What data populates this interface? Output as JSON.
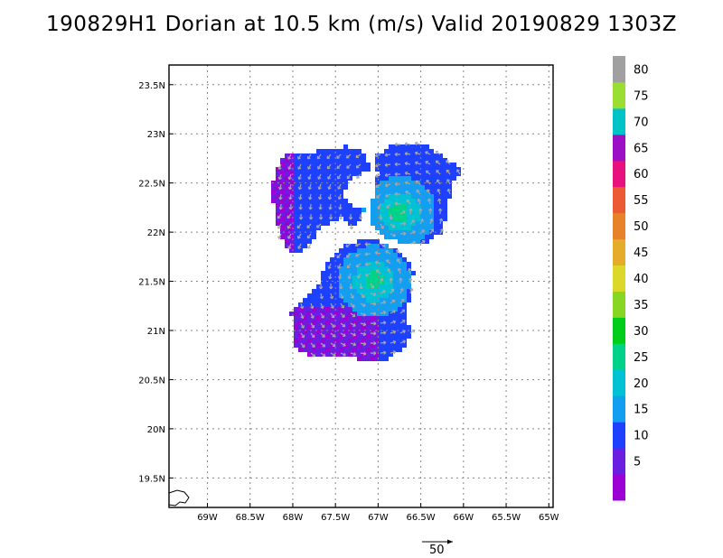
{
  "title": "190829H1 Dorian at 10.5 km (m/s) Valid 20190829 1303Z",
  "map": {
    "lon_range": [
      -69.45,
      -64.95
    ],
    "lat_range": [
      19.2,
      23.7
    ],
    "lon_ticks": [
      {
        "value": -69.0,
        "label": "69W"
      },
      {
        "value": -68.5,
        "label": "68.5W"
      },
      {
        "value": -68.0,
        "label": "68W"
      },
      {
        "value": -67.5,
        "label": "67.5W"
      },
      {
        "value": -67.0,
        "label": "67W"
      },
      {
        "value": -66.5,
        "label": "66.5W"
      },
      {
        "value": -66.0,
        "label": "66W"
      },
      {
        "value": -65.5,
        "label": "65.5W"
      },
      {
        "value": -65.0,
        "label": "65W"
      }
    ],
    "lat_ticks": [
      {
        "value": 19.5,
        "label": "19.5N"
      },
      {
        "value": 20.0,
        "label": "20N"
      },
      {
        "value": 20.5,
        "label": "20.5N"
      },
      {
        "value": 21.0,
        "label": "21N"
      },
      {
        "value": 21.5,
        "label": "21.5N"
      },
      {
        "value": 22.0,
        "label": "22N"
      },
      {
        "value": 22.5,
        "label": "22.5N"
      },
      {
        "value": 23.0,
        "label": "23N"
      },
      {
        "value": 23.5,
        "label": "23.5N"
      }
    ],
    "grid": true,
    "vortex_centers": [
      {
        "name": "upper",
        "lon": -66.75,
        "lat": 22.2
      },
      {
        "name": "lower",
        "lon": -67.05,
        "lat": 21.5
      }
    ]
  },
  "colorbar": {
    "colors": [
      "#9b00d4",
      "#6a1fe0",
      "#1e40ff",
      "#139ef0",
      "#00c2d2",
      "#00d28a",
      "#00cd19",
      "#86d623",
      "#dcd82a",
      "#e5ab2a",
      "#e8822a",
      "#ec5a35",
      "#e8127f",
      "#9b10c5",
      "#00c3c8",
      "#9ade34",
      "#a0a0a0"
    ],
    "labels": [
      "5",
      "10",
      "15",
      "20",
      "25",
      "30",
      "35",
      "40",
      "45",
      "50",
      "55",
      "60",
      "65",
      "70",
      "75",
      "80"
    ]
  },
  "reference_vector": {
    "label": "50"
  }
}
